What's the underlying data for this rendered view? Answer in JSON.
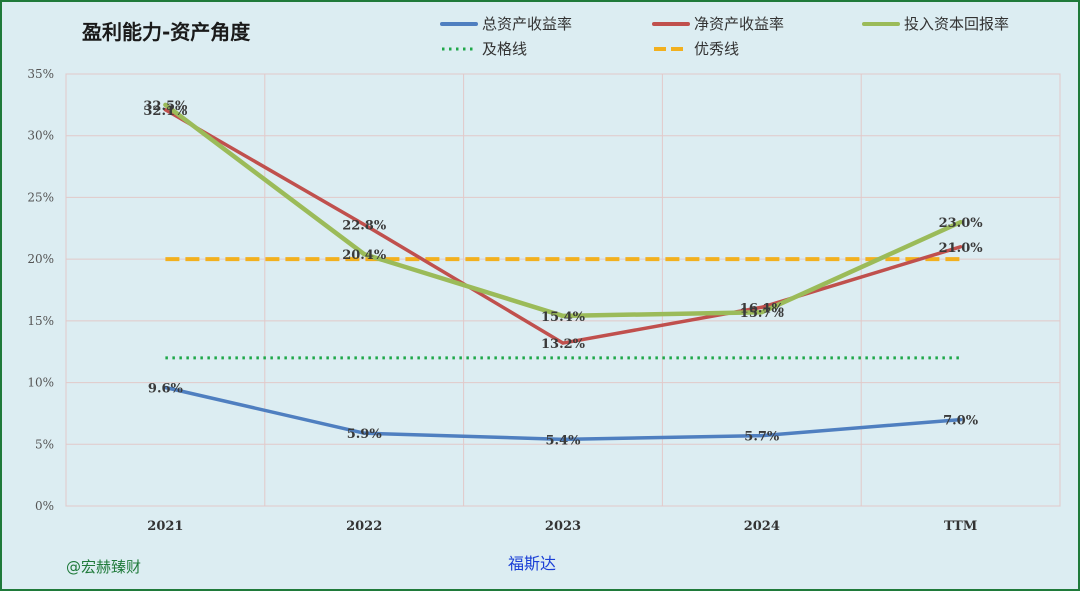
{
  "chart_data": {
    "type": "line",
    "title": "盈利能力-资产角度",
    "categories": [
      "2021",
      "2022",
      "2023",
      "2024",
      "TTM"
    ],
    "ylim": [
      0,
      35
    ],
    "yticks": [
      0,
      5,
      10,
      15,
      20,
      25,
      30,
      35
    ],
    "ytick_labels": [
      "0%",
      "5%",
      "10%",
      "15%",
      "20%",
      "25%",
      "30%",
      "35%"
    ],
    "grid": true,
    "legend_position": "top-right",
    "series": [
      {
        "name": "总资产收益率",
        "color": "#4f7fc0",
        "values": [
          9.6,
          5.9,
          5.4,
          5.7,
          7.0
        ],
        "labels": [
          "9.6%",
          "5.9%",
          "5.4%",
          "5.7%",
          "7.0%"
        ]
      },
      {
        "name": "净资产收益率",
        "color": "#c0504d",
        "values": [
          32.1,
          22.8,
          13.2,
          16.1,
          21.0
        ],
        "labels": [
          "32.1%",
          "22.8%",
          "13.2%",
          "16.1%",
          "21.0%"
        ]
      },
      {
        "name": "投入资本回报率",
        "color": "#9bbb59",
        "values": [
          32.5,
          20.4,
          15.4,
          15.7,
          23.0
        ],
        "labels": [
          "32.5%",
          "20.4%",
          "15.4%",
          "15.7%",
          "23.0%"
        ]
      }
    ],
    "reference_lines": [
      {
        "name": "及格线",
        "value": 12,
        "color": "#1fa84a",
        "style": "dotted"
      },
      {
        "name": "优秀线",
        "value": 20,
        "color": "#f2b01e",
        "style": "dashed"
      }
    ]
  },
  "footer": {
    "watermark": "@宏赫臻财",
    "company": "福斯达"
  }
}
